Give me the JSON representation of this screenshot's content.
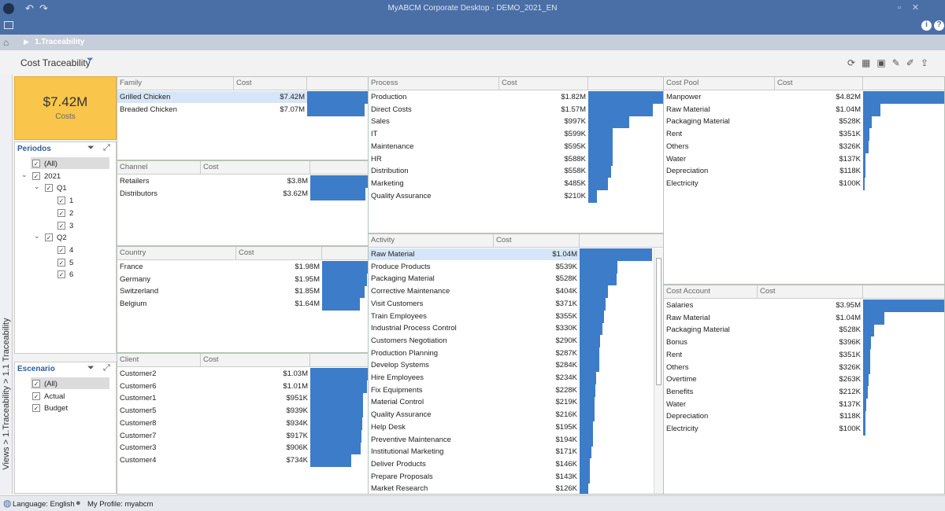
{
  "app_title": "MyABCM Corporate Desktop - DEMO_2021_EN",
  "breadcrumb": "1.Traceability",
  "page_title": "Cost Traceability",
  "side_path": "Views > 1.Traceability > 1.1 Traceability",
  "kpi": {
    "value": "$7.42M",
    "label": "Costs"
  },
  "filters": [
    {
      "title": "Periodos",
      "items": [
        {
          "label": "(All)"
        },
        {
          "label": "2021",
          "children": [
            {
              "label": "Q1",
              "children": [
                {
                  "label": "1"
                },
                {
                  "label": "2"
                },
                {
                  "label": "3"
                }
              ]
            },
            {
              "label": "Q2",
              "children": [
                {
                  "label": "4"
                },
                {
                  "label": "5"
                },
                {
                  "label": "6"
                }
              ]
            }
          ]
        }
      ]
    },
    {
      "title": "Escenario",
      "items": [
        {
          "label": "(All)"
        },
        {
          "label": "Actual"
        },
        {
          "label": "Budget"
        }
      ]
    }
  ],
  "panels": [
    {
      "title": "Family",
      "cost_header": "Cost",
      "rows": [
        {
          "name": "Grilled Chicken",
          "label": "$7.42M",
          "value": 7420000
        },
        {
          "name": "Breaded Chicken",
          "label": "$7.07M",
          "value": 7070000
        }
      ]
    },
    {
      "title": "Channel",
      "cost_header": "Cost",
      "rows": [
        {
          "name": "Retailers",
          "label": "$3.8M",
          "value": 3800000
        },
        {
          "name": "Distributors",
          "label": "$3.62M",
          "value": 3620000
        }
      ]
    },
    {
      "title": "Country",
      "cost_header": "Cost",
      "rows": [
        {
          "name": "France",
          "label": "$1.98M",
          "value": 1980000
        },
        {
          "name": "Germany",
          "label": "$1.95M",
          "value": 1950000
        },
        {
          "name": "Switzerland",
          "label": "$1.85M",
          "value": 1850000
        },
        {
          "name": "Belgium",
          "label": "$1.64M",
          "value": 1640000
        }
      ]
    },
    {
      "title": "Client",
      "cost_header": "Cost",
      "rows": [
        {
          "name": "Customer2",
          "label": "$1.03M",
          "value": 1030000
        },
        {
          "name": "Customer6",
          "label": "$1.01M",
          "value": 1010000
        },
        {
          "name": "Customer1",
          "label": "$951K",
          "value": 951000
        },
        {
          "name": "Customer5",
          "label": "$939K",
          "value": 939000
        },
        {
          "name": "Customer8",
          "label": "$934K",
          "value": 934000
        },
        {
          "name": "Customer7",
          "label": "$917K",
          "value": 917000
        },
        {
          "name": "Customer3",
          "label": "$906K",
          "value": 906000
        },
        {
          "name": "Customer4",
          "label": "$734K",
          "value": 734000
        }
      ]
    },
    {
      "title": "Process",
      "cost_header": "Cost",
      "rows": [
        {
          "name": "Production",
          "label": "$1.82M",
          "value": 1820000
        },
        {
          "name": "Direct Costs",
          "label": "$1.57M",
          "value": 1570000
        },
        {
          "name": "Sales",
          "label": "$997K",
          "value": 997000
        },
        {
          "name": "IT",
          "label": "$599K",
          "value": 599000
        },
        {
          "name": "Maintenance",
          "label": "$595K",
          "value": 595000
        },
        {
          "name": "HR",
          "label": "$588K",
          "value": 588000
        },
        {
          "name": "Distribution",
          "label": "$558K",
          "value": 558000
        },
        {
          "name": "Marketing",
          "label": "$485K",
          "value": 485000
        },
        {
          "name": "Quality Assurance",
          "label": "$210K",
          "value": 210000
        }
      ]
    },
    {
      "title": "Activity",
      "cost_header": "Cost",
      "rows": [
        {
          "name": "Raw Material",
          "label": "$1.04M",
          "value": 1040000
        },
        {
          "name": "Produce Products",
          "label": "$539K",
          "value": 539000
        },
        {
          "name": "Packaging Material",
          "label": "$528K",
          "value": 528000
        },
        {
          "name": "Corrective Maintenance",
          "label": "$404K",
          "value": 404000
        },
        {
          "name": "Visit Customers",
          "label": "$371K",
          "value": 371000
        },
        {
          "name": "Train Employees",
          "label": "$355K",
          "value": 355000
        },
        {
          "name": "Industrial Process Control",
          "label": "$330K",
          "value": 330000
        },
        {
          "name": "Customers Negotiation",
          "label": "$290K",
          "value": 290000
        },
        {
          "name": "Production Planning",
          "label": "$287K",
          "value": 287000
        },
        {
          "name": "Develop Systems",
          "label": "$284K",
          "value": 284000
        },
        {
          "name": "Hire Employees",
          "label": "$234K",
          "value": 234000
        },
        {
          "name": "Fix Equipments",
          "label": "$228K",
          "value": 228000
        },
        {
          "name": "Material Control",
          "label": "$219K",
          "value": 219000
        },
        {
          "name": "Quality Assurance",
          "label": "$216K",
          "value": 216000
        },
        {
          "name": "Help Desk",
          "label": "$195K",
          "value": 195000
        },
        {
          "name": "Preventive Maintenance",
          "label": "$194K",
          "value": 194000
        },
        {
          "name": "Institutional Marketing",
          "label": "$171K",
          "value": 171000
        },
        {
          "name": "Deliver Products",
          "label": "$146K",
          "value": 146000
        },
        {
          "name": "Prepare Proposals",
          "label": "$143K",
          "value": 143000
        },
        {
          "name": "Market Research",
          "label": "$126K",
          "value": 126000
        }
      ]
    },
    {
      "title": "Cost Pool",
      "cost_header": "Cost",
      "rows": [
        {
          "name": "Manpower",
          "label": "$4.82M",
          "value": 4820000
        },
        {
          "name": "Raw Material",
          "label": "$1.04M",
          "value": 1040000
        },
        {
          "name": "Packaging Material",
          "label": "$528K",
          "value": 528000
        },
        {
          "name": "Rent",
          "label": "$351K",
          "value": 351000
        },
        {
          "name": "Others",
          "label": "$326K",
          "value": 326000
        },
        {
          "name": "Water",
          "label": "$137K",
          "value": 137000
        },
        {
          "name": "Depreciation",
          "label": "$118K",
          "value": 118000
        },
        {
          "name": "Electricity",
          "label": "$100K",
          "value": 100000
        }
      ]
    },
    {
      "title": "Cost Account",
      "cost_header": "Cost",
      "rows": [
        {
          "name": "Salaries",
          "label": "$3.95M",
          "value": 3950000
        },
        {
          "name": "Raw Material",
          "label": "$1.04M",
          "value": 1040000
        },
        {
          "name": "Packaging Material",
          "label": "$528K",
          "value": 528000
        },
        {
          "name": "Bonus",
          "label": "$396K",
          "value": 396000
        },
        {
          "name": "Rent",
          "label": "$351K",
          "value": 351000
        },
        {
          "name": "Others",
          "label": "$326K",
          "value": 326000
        },
        {
          "name": "Overtime",
          "label": "$263K",
          "value": 263000
        },
        {
          "name": "Benefits",
          "label": "$212K",
          "value": 212000
        },
        {
          "name": "Water",
          "label": "$137K",
          "value": 137000
        },
        {
          "name": "Depreciation",
          "label": "$118K",
          "value": 118000
        },
        {
          "name": "Electricity",
          "label": "$100K",
          "value": 100000
        }
      ]
    }
  ],
  "status": {
    "language": "Language: English",
    "profile": "My Profile: myabcm"
  }
}
